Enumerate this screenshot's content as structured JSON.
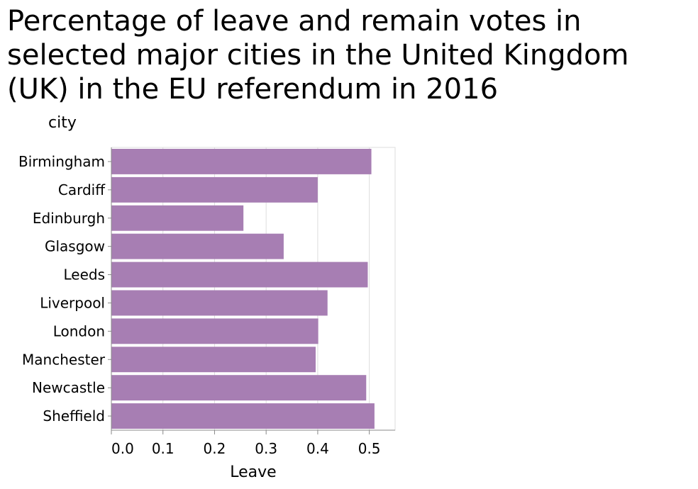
{
  "chart_data": {
    "type": "bar",
    "orientation": "horizontal",
    "title": "Percentage of leave and remain votes in selected major cities in the United Kingdom (UK) in the EU referendum in 2016",
    "xlabel": "Leave",
    "ylabel": "city",
    "categories": [
      "Birmingham",
      "Cardiff",
      "Edinburgh",
      "Glasgow",
      "Leeds",
      "Liverpool",
      "London",
      "Manchester",
      "Newcastle",
      "Sheffield"
    ],
    "values": [
      0.504,
      0.4,
      0.256,
      0.334,
      0.497,
      0.419,
      0.401,
      0.396,
      0.494,
      0.51
    ],
    "xlim": [
      0,
      0.55
    ],
    "xticks": [
      "0.0",
      "0.1",
      "0.2",
      "0.3",
      "0.4",
      "0.5"
    ],
    "xtick_values": [
      0,
      0.1,
      0.2,
      0.3,
      0.4,
      0.5
    ],
    "grid": true,
    "colors": {
      "bar": "#a77eb3",
      "grid": "#dddddd",
      "axis": "#888888"
    }
  }
}
